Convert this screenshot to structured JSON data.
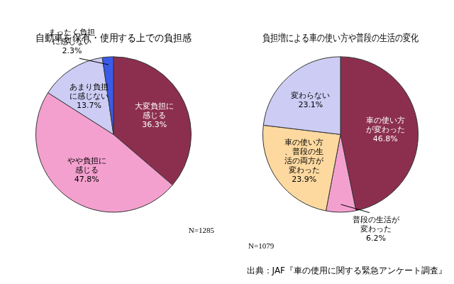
{
  "chart_data": [
    {
      "type": "pie",
      "title": "自動車を保有・使用する上での負担感",
      "categories": [
        "大変負担に感じる",
        "やや負担に感じる",
        "あまり負担に感じない",
        "まったく負担に感じない"
      ],
      "values": [
        36.3,
        47.8,
        13.7,
        2.3
      ],
      "value_labels": [
        "36.3%",
        "47.8%",
        "13.7%",
        "2.3%"
      ],
      "colors": [
        "#8c2f4f",
        "#f4a0cf",
        "#ccccf4",
        "#3a5ae8"
      ],
      "data_labels": true,
      "annotations": [
        "N=1285"
      ]
    },
    {
      "type": "pie",
      "title": "負担増による車の使い方や普段の生活の変化",
      "categories": [
        "車の使い方が変わった",
        "普段の生活が変わった",
        "車の使い方、普段の生活の両方が変わった",
        "変わらない"
      ],
      "values": [
        46.8,
        6.2,
        23.9,
        23.1
      ],
      "value_labels": [
        "46.8%",
        "6.2%",
        "23.9%",
        "23.1%"
      ],
      "colors": [
        "#8c2f4f",
        "#f4a0cf",
        "#fdd9a0",
        "#ccccf4"
      ],
      "data_labels": true,
      "annotations": [
        "N=1079"
      ]
    }
  ],
  "source": "出典：JAF『車の使用に関する緊急アンケート調査』"
}
